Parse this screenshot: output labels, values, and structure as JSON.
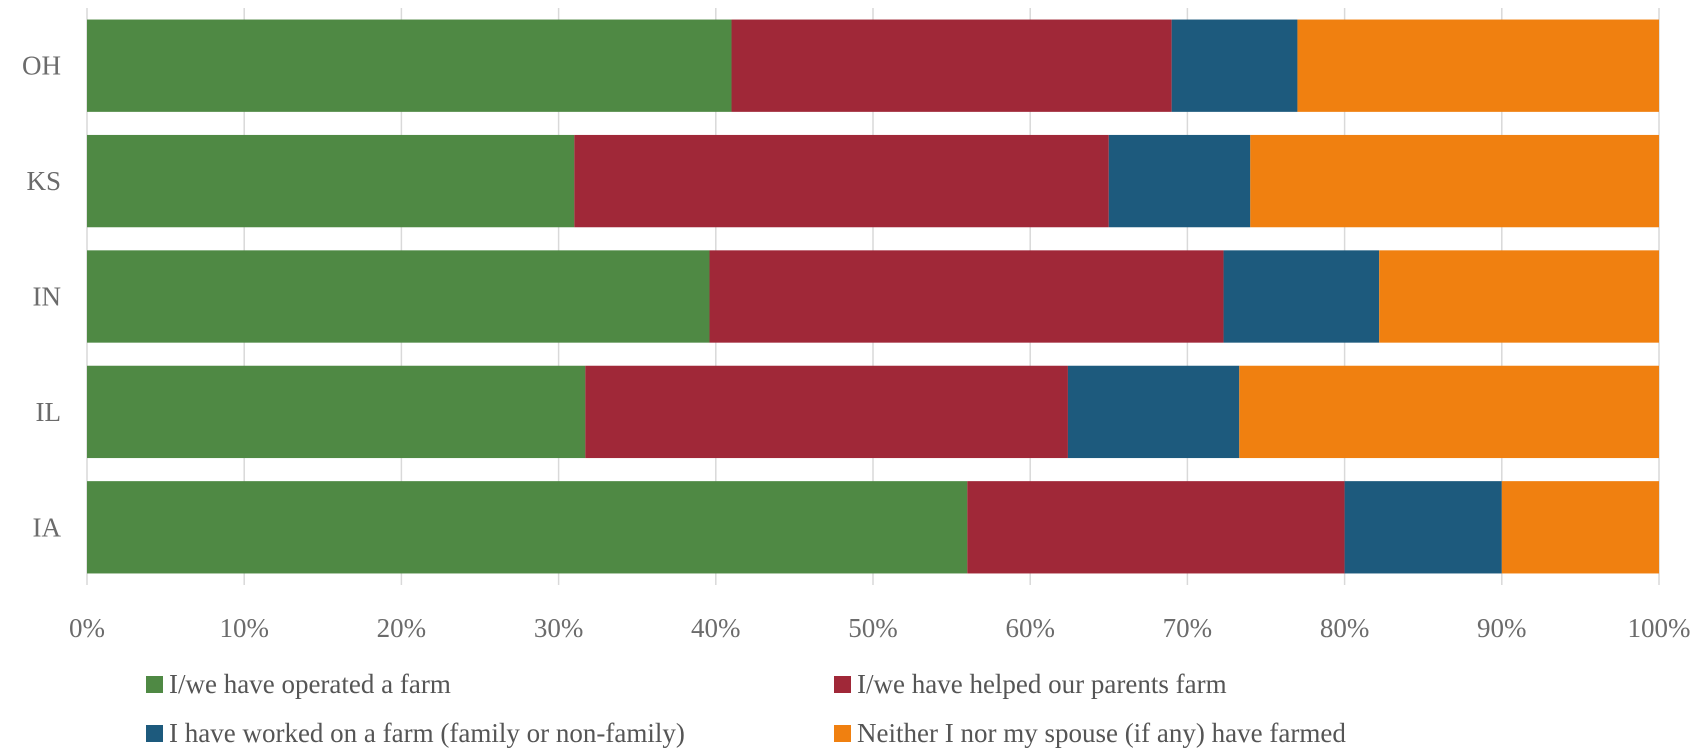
{
  "chart_data": {
    "type": "bar",
    "orientation": "horizontal",
    "stacked": true,
    "categories": [
      "OH",
      "KS",
      "IN",
      "IL",
      "IA"
    ],
    "series": [
      {
        "name": "I/we have operated a farm",
        "color": "#4f8944",
        "values": [
          41,
          31,
          39.6,
          31.7,
          56
        ]
      },
      {
        "name": "I/we have helped our parents farm",
        "color": "#a02838",
        "values": [
          28,
          34,
          32.7,
          30.7,
          24
        ]
      },
      {
        "name": "I have worked on a farm (family or non-family)",
        "color": "#1d5a7d",
        "values": [
          8,
          9,
          9.9,
          10.9,
          10
        ]
      },
      {
        "name": "Neither I nor my spouse (if any) have farmed",
        "color": "#f08010",
        "values": [
          23,
          26,
          17.8,
          26.7,
          10
        ]
      }
    ],
    "x_ticks": [
      "0%",
      "10%",
      "20%",
      "30%",
      "40%",
      "50%",
      "60%",
      "70%",
      "80%",
      "90%",
      "100%"
    ],
    "xlim": [
      0,
      100
    ],
    "grid": true,
    "legend_position": "bottom",
    "title": "",
    "xlabel": "",
    "ylabel": ""
  }
}
